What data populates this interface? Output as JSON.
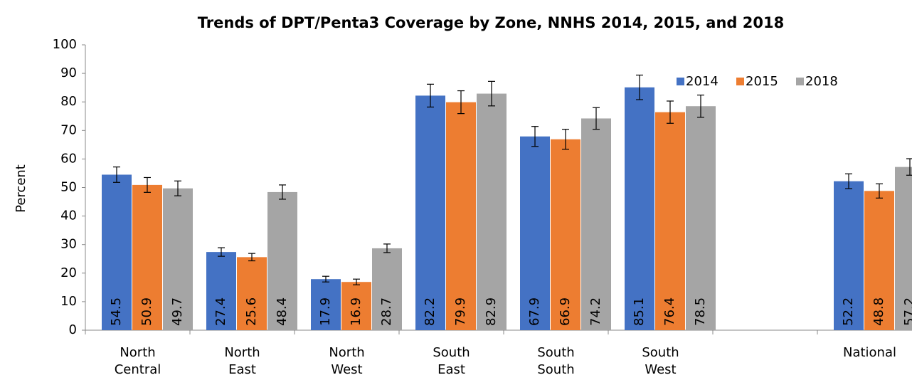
{
  "chart_data": {
    "type": "bar",
    "title": "Trends of DPT/Penta3 Coverage by Zone,  NNHS 2014, 2015, and 2018",
    "y_label": "Percent",
    "categories": [
      "North Central",
      "North East",
      "North West",
      "South East",
      "South South",
      "South West",
      null,
      "National"
    ],
    "series": [
      {
        "name": "2014",
        "color": "#4472c4",
        "values": [
          54.5,
          27.4,
          17.9,
          82.2,
          67.9,
          85.1,
          null,
          52.2
        ],
        "errors": [
          2.7,
          1.5,
          1.0,
          4.0,
          3.5,
          4.3,
          null,
          2.6
        ]
      },
      {
        "name": "2015",
        "color": "#ed7d31",
        "values": [
          50.9,
          25.6,
          16.9,
          79.9,
          66.9,
          76.4,
          null,
          48.8
        ],
        "errors": [
          2.6,
          1.3,
          1.0,
          4.0,
          3.5,
          3.9,
          null,
          2.5
        ]
      },
      {
        "name": "2018",
        "color": "#a5a5a5",
        "values": [
          49.7,
          48.4,
          28.7,
          82.9,
          74.2,
          78.5,
          null,
          57.2
        ],
        "errors": [
          2.6,
          2.5,
          1.5,
          4.3,
          3.8,
          3.9,
          null,
          2.9
        ]
      }
    ],
    "ylim": [
      0,
      100
    ],
    "yticks": [
      0,
      10,
      20,
      30,
      40,
      50,
      60,
      70,
      80,
      90,
      100
    ],
    "legend": "top-right"
  }
}
